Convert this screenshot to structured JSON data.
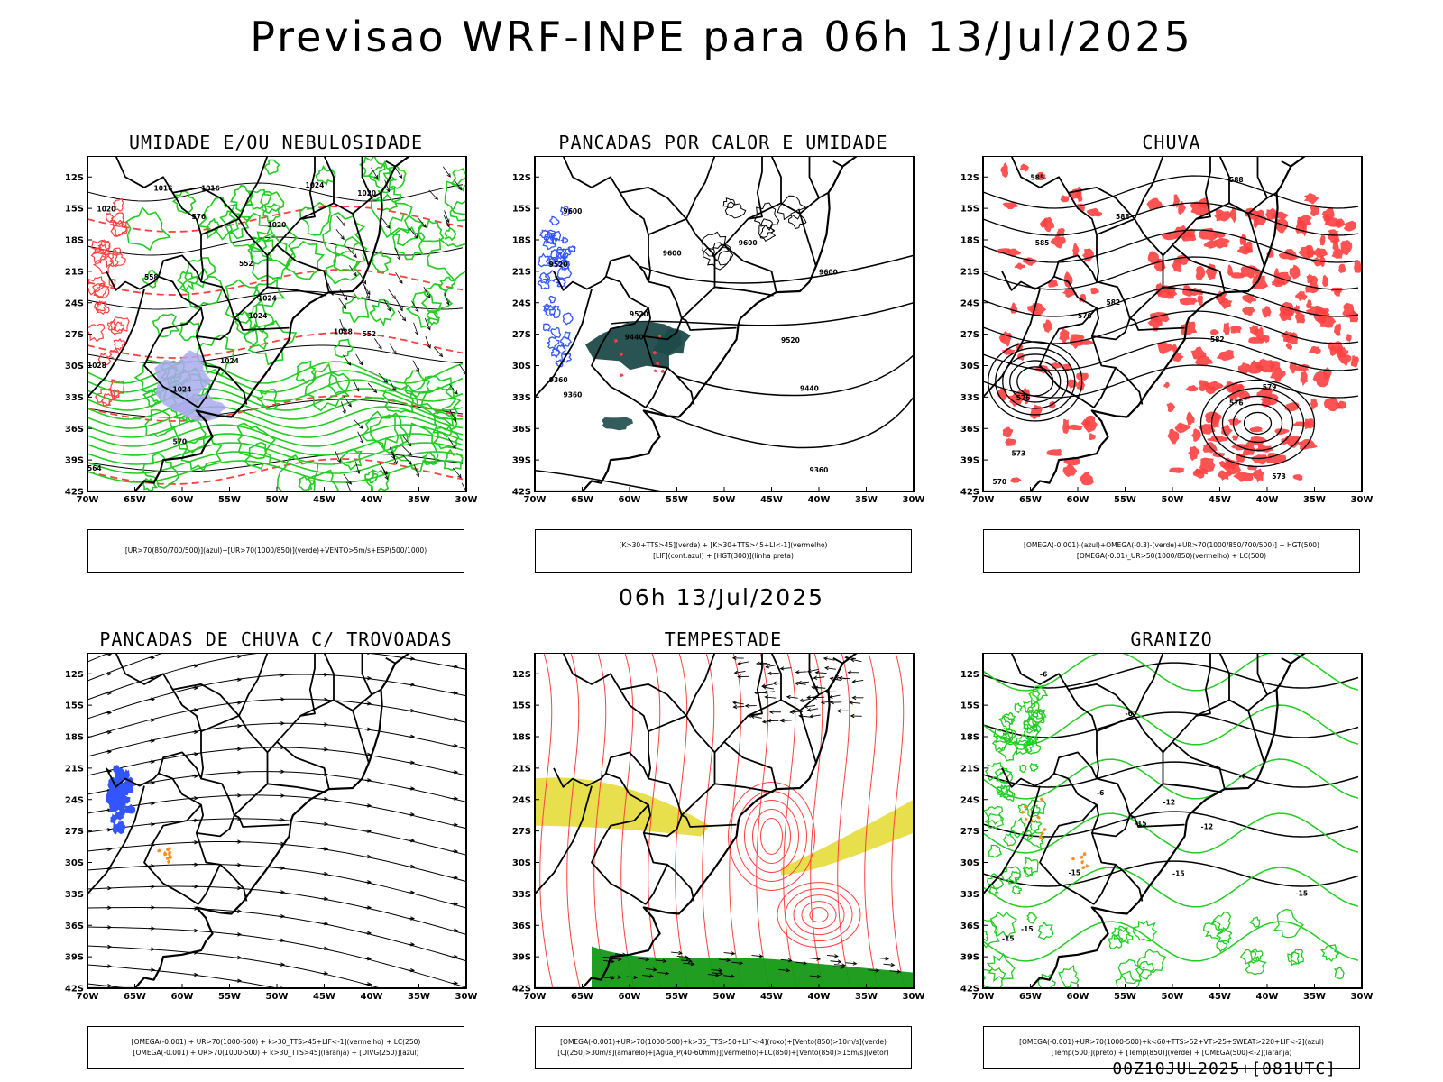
{
  "title": "Previsao WRF-INPE  para 06h 13/Jul/2025",
  "mid_title": "06h 13/Jul/2025",
  "footer": "00Z10JUL2025+[081UTC]",
  "lat_labels": [
    "12S",
    "15S",
    "18S",
    "21S",
    "24S",
    "27S",
    "30S",
    "33S",
    "36S",
    "39S",
    "42S"
  ],
  "lon_labels": [
    "70W",
    "65W",
    "60W",
    "55W",
    "50W",
    "45W",
    "40W",
    "35W",
    "30W"
  ],
  "colors": {
    "green": "#22cc22",
    "red": "#ff4040",
    "blue": "#3355ff",
    "lilac": "#aaaaee",
    "teal": "#1f4a4a",
    "yellow": "#e6dc3a",
    "orange": "#ff8c1a",
    "darkgreen": "#159915"
  },
  "panels": [
    {
      "id": "umidade",
      "title": "UMIDADE E/OU NEBULOSIDADE",
      "legend": [
        "[UR>70(850/700/500)](azul)+[UR>70(1000/850)](verde)+VENTO>5m/s+ESP(500/1000)"
      ],
      "contour_labels": [
        "1016",
        "1016",
        "1020",
        "1020",
        "1020",
        "1024",
        "1024",
        "1024",
        "1028",
        "1028",
        "1024",
        "1024",
        "570",
        "564",
        "576",
        "552",
        "558",
        "552"
      ]
    },
    {
      "id": "pancadas-calor",
      "title": "PANCADAS POR CALOR E UMIDADE",
      "legend": [
        "[K>30+TTS>45](verde) + [K>30+TTS>45+LI<-1](vermelho)",
        "[LIF](cont.azul) + [HGT(300)](linha preta)"
      ],
      "contour_labels": [
        "9600",
        "9520",
        "9600",
        "9600",
        "9600",
        "9520",
        "9440",
        "9520",
        "9440",
        "9360",
        "9360",
        "9360"
      ]
    },
    {
      "id": "chuva",
      "title": "CHUVA",
      "legend": [
        "[OMEGA(-0.001)-(azul)+OMEGA(-0.3)-(verde)+UR>70(1000/850/700/500)] + HGT(500)",
        "[OMEGA(-0.01)_UR>50(1000/850)(vermelho) + LC(500)"
      ],
      "contour_labels": [
        "585",
        "588",
        "588",
        "585",
        "582",
        "576",
        "582",
        "576",
        "579",
        "576",
        "573",
        "570",
        "573"
      ]
    },
    {
      "id": "pancadas-trovoadas",
      "title": "PANCADAS DE CHUVA C/ TROVOADAS",
      "legend": [
        "[OMEGA(-0.001) + UR>70(1000-500) + k>30_TTS>45+LIF<-1](vermelho) + LC(250)",
        "[OMEGA(-0.001) + UR>70(1000-500) + k>30_TTS>45](laranja) + [DIVG(250)](azul)"
      ],
      "contour_labels": []
    },
    {
      "id": "tempestade",
      "title": "TEMPESTADE",
      "legend": [
        "[OMEGA(-0.001)+UR>70(1000-500)+k>35_TTS>50+LIF<-4](roxo)+[Vento(850)>10m/s](verde)",
        "[CJ(250)>30m/s](amarelo)+[Agua_P(40-60mm)](vermelho)+LC(850)+[Vento(850)>15m/s](vetor)"
      ],
      "contour_labels": []
    },
    {
      "id": "granizo",
      "title": "GRANIZO",
      "legend": [
        "[OMEGA(-0.001)+UR>70(1000-500)+k<60+TTS>52+VT>25+SWEAT>220+LIF<-2](azul)",
        "[Temp(500)](preto) + [Temp(850)](verde) + [OMEGA(500)<-2](laranja)"
      ],
      "contour_labels": [
        "-6",
        "-6",
        "-6",
        "-6",
        "-12",
        "-12",
        "-15",
        "-15",
        "-15",
        "-15",
        "-15",
        "-15"
      ]
    }
  ]
}
